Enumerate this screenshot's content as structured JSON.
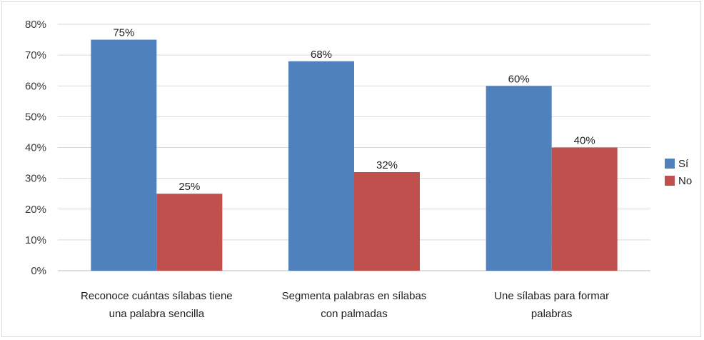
{
  "chart_data": {
    "type": "bar",
    "categories": [
      [
        "Reconoce cuántas sílabas tiene",
        "una palabra sencilla"
      ],
      [
        "Segmenta palabras en sílabas",
        "con palmadas"
      ],
      [
        "Une sílabas para formar",
        "palabras"
      ]
    ],
    "series": [
      {
        "name": "Sí",
        "values": [
          75,
          68,
          60
        ],
        "labels": [
          "75%",
          "68%",
          "60%"
        ],
        "color": "#4f81bd"
      },
      {
        "name": "No",
        "values": [
          25,
          32,
          40
        ],
        "labels": [
          "25%",
          "32%",
          "40%"
        ],
        "color": "#c0504d"
      }
    ],
    "yticks": [
      "0%",
      "10%",
      "20%",
      "30%",
      "40%",
      "50%",
      "60%",
      "70%",
      "80%"
    ],
    "ylim": [
      0,
      80
    ],
    "grid": true,
    "legend_position": "right"
  }
}
